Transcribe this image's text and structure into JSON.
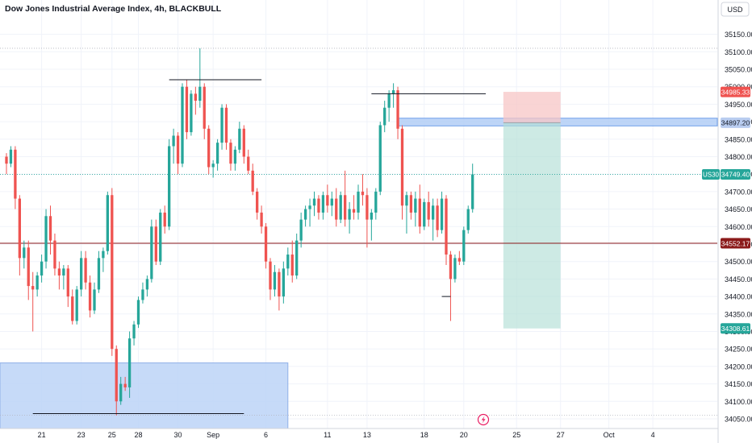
{
  "header": {
    "title": "Dow Jones Industrial Average Index, 4h, BLACKBULL",
    "currency": "USD"
  },
  "colors": {
    "up": "#26a69a",
    "down": "#ef5350",
    "current_price": "#26a69a",
    "hline": "#8b1a1a",
    "stop_zone": "#f7c5c5",
    "target_zone": "#b2dfd6",
    "demand_zone": "#bcd3f7",
    "supply_zone": "#aecbf5",
    "blue_label": "#b9cdf0",
    "grid": "#f0f3fa",
    "text": "#131722"
  },
  "chart_data": {
    "type": "candlestick",
    "title": "Dow Jones Industrial Average Index, 4h, BLACKBULL",
    "ylim": [
      34015,
      35200
    ],
    "y_ticks": [
      34050,
      34100,
      34150,
      34200,
      34250,
      34300,
      34350,
      34400,
      34450,
      34500,
      34550,
      34600,
      34650,
      34700,
      34750,
      34800,
      34850,
      34900,
      34950,
      35000,
      35050,
      35100,
      35150
    ],
    "x_ticks": [
      {
        "label": "21",
        "bar": 8
      },
      {
        "label": "23",
        "bar": 17
      },
      {
        "label": "25",
        "bar": 24
      },
      {
        "label": "28",
        "bar": 30
      },
      {
        "label": "30",
        "bar": 39
      },
      {
        "label": "Sep",
        "bar": 47
      },
      {
        "label": "6",
        "bar": 59
      },
      {
        "label": "11",
        "bar": 73
      },
      {
        "label": "13",
        "bar": 82
      },
      {
        "label": "18",
        "bar": 95
      },
      {
        "label": "20",
        "bar": 104
      },
      {
        "label": "25",
        "bar": 116
      },
      {
        "label": "27",
        "bar": 126
      },
      {
        "label": "Oct",
        "bar": 137
      },
      {
        "label": "4",
        "bar": 147
      }
    ],
    "candles": [
      [
        34800,
        34810,
        34750,
        34780
      ],
      [
        34780,
        34830,
        34770,
        34820
      ],
      [
        34820,
        34830,
        34650,
        34680
      ],
      [
        34680,
        34690,
        34460,
        34510
      ],
      [
        34510,
        34560,
        34480,
        34540
      ],
      [
        34540,
        34560,
        34390,
        34430
      ],
      [
        34430,
        34470,
        34300,
        34420
      ],
      [
        34420,
        34470,
        34400,
        34460
      ],
      [
        34460,
        34520,
        34440,
        34500
      ],
      [
        34500,
        34650,
        34480,
        34630
      ],
      [
        34630,
        34660,
        34520,
        34560
      ],
      [
        34560,
        34580,
        34460,
        34480
      ],
      [
        34480,
        34500,
        34420,
        34460
      ],
      [
        34460,
        34490,
        34420,
        34480
      ],
      [
        34480,
        34490,
        34370,
        34400
      ],
      [
        34400,
        34420,
        34320,
        34330
      ],
      [
        34330,
        34430,
        34320,
        34420
      ],
      [
        34420,
        34530,
        34400,
        34510
      ],
      [
        34510,
        34530,
        34420,
        34440
      ],
      [
        34440,
        34460,
        34340,
        34360
      ],
      [
        34360,
        34440,
        34350,
        34420
      ],
      [
        34420,
        34530,
        34410,
        34510
      ],
      [
        34510,
        34540,
        34470,
        34530
      ],
      [
        34530,
        34700,
        34520,
        34690
      ],
      [
        34690,
        34710,
        34230,
        34250
      ],
      [
        34250,
        34260,
        34060,
        34100
      ],
      [
        34100,
        34170,
        34090,
        34150
      ],
      [
        34150,
        34170,
        34130,
        34140
      ],
      [
        34140,
        34300,
        34110,
        34280
      ],
      [
        34280,
        34330,
        34260,
        34320
      ],
      [
        34320,
        34400,
        34310,
        34390
      ],
      [
        34390,
        34440,
        34380,
        34420
      ],
      [
        34420,
        34460,
        34400,
        34450
      ],
      [
        34450,
        34620,
        34440,
        34600
      ],
      [
        34600,
        34620,
        34490,
        34500
      ],
      [
        34500,
        34650,
        34490,
        34640
      ],
      [
        34640,
        34660,
        34580,
        34600
      ],
      [
        34600,
        34850,
        34590,
        34830
      ],
      [
        34830,
        34880,
        34780,
        34860
      ],
      [
        34860,
        34870,
        34750,
        34780
      ],
      [
        34780,
        35010,
        34770,
        35000
      ],
      [
        35000,
        35020,
        34850,
        34870
      ],
      [
        34870,
        34990,
        34860,
        34980
      ],
      [
        34980,
        35000,
        34920,
        34960
      ],
      [
        34960,
        35110,
        34940,
        35000
      ],
      [
        35000,
        35010,
        34850,
        34880
      ],
      [
        34880,
        34890,
        34750,
        34770
      ],
      [
        34770,
        34790,
        34740,
        34780
      ],
      [
        34780,
        34850,
        34760,
        34840
      ],
      [
        34840,
        34950,
        34820,
        34940
      ],
      [
        34940,
        34950,
        34820,
        34840
      ],
      [
        34840,
        34850,
        34760,
        34780
      ],
      [
        34780,
        34830,
        34760,
        34820
      ],
      [
        34820,
        34900,
        34810,
        34880
      ],
      [
        34880,
        34890,
        34780,
        34800
      ],
      [
        34800,
        34820,
        34750,
        34760
      ],
      [
        34760,
        34780,
        34690,
        34700
      ],
      [
        34700,
        34710,
        34620,
        34640
      ],
      [
        34640,
        34660,
        34580,
        34600
      ],
      [
        34600,
        34610,
        34480,
        34500
      ],
      [
        34500,
        34510,
        34390,
        34420
      ],
      [
        34420,
        34490,
        34400,
        34470
      ],
      [
        34470,
        34480,
        34360,
        34400
      ],
      [
        34400,
        34500,
        34380,
        34480
      ],
      [
        34480,
        34540,
        34460,
        34520
      ],
      [
        34520,
        34560,
        34440,
        34460
      ],
      [
        34460,
        34580,
        34450,
        34560
      ],
      [
        34560,
        34640,
        34540,
        34620
      ],
      [
        34620,
        34660,
        34600,
        34650
      ],
      [
        34650,
        34680,
        34600,
        34660
      ],
      [
        34660,
        34700,
        34630,
        34680
      ],
      [
        34680,
        34690,
        34620,
        34640
      ],
      [
        34640,
        34700,
        34620,
        34690
      ],
      [
        34690,
        34720,
        34640,
        34660
      ],
      [
        34660,
        34700,
        34630,
        34680
      ],
      [
        34680,
        34710,
        34600,
        34620
      ],
      [
        34620,
        34700,
        34610,
        34690
      ],
      [
        34690,
        34760,
        34600,
        34620
      ],
      [
        34620,
        34670,
        34580,
        34650
      ],
      [
        34650,
        34690,
        34620,
        34640
      ],
      [
        34640,
        34720,
        34620,
        34700
      ],
      [
        34700,
        34750,
        34660,
        34690
      ],
      [
        34690,
        34710,
        34540,
        34620
      ],
      [
        34620,
        34650,
        34560,
        34640
      ],
      [
        34640,
        34710,
        34620,
        34700
      ],
      [
        34700,
        34900,
        34690,
        34890
      ],
      [
        34890,
        34960,
        34870,
        34940
      ],
      [
        34940,
        34990,
        34900,
        34980
      ],
      [
        34980,
        35010,
        34940,
        34990
      ],
      [
        34990,
        35000,
        34850,
        34880
      ],
      [
        34880,
        34890,
        34620,
        34660
      ],
      [
        34660,
        34700,
        34580,
        34690
      ],
      [
        34690,
        34700,
        34620,
        34640
      ],
      [
        34640,
        34700,
        34600,
        34680
      ],
      [
        34680,
        34720,
        34580,
        34600
      ],
      [
        34600,
        34680,
        34590,
        34670
      ],
      [
        34670,
        34700,
        34600,
        34620
      ],
      [
        34620,
        34680,
        34560,
        34660
      ],
      [
        34660,
        34680,
        34570,
        34590
      ],
      [
        34590,
        34700,
        34580,
        34680
      ],
      [
        34680,
        34690,
        34490,
        34520
      ],
      [
        34520,
        34530,
        34330,
        34450
      ],
      [
        34450,
        34520,
        34440,
        34510
      ],
      [
        34510,
        34530,
        34490,
        34500
      ],
      [
        34500,
        34600,
        34490,
        34590
      ],
      [
        34590,
        34660,
        34580,
        34650
      ],
      [
        34650,
        34780,
        34640,
        34749.4
      ]
    ],
    "price_labels": [
      {
        "text": "34985.33",
        "value": 34985.33,
        "style": "stop"
      },
      {
        "text": "34897.20",
        "value": 34897.2,
        "style": "blue"
      },
      {
        "text": "34749.40",
        "value": 34749.4,
        "style": "current",
        "tag": "US30"
      },
      {
        "text": "34552.17",
        "value": 34552.17,
        "style": "hline"
      },
      {
        "text": "34308.61",
        "value": 34308.61,
        "style": "target"
      }
    ],
    "horizontal_line": 34552.17,
    "current_price": 34749.4,
    "drawings": {
      "swing_lines": [
        {
          "from_bar": 37,
          "to_bar": 58,
          "value": 35020
        },
        {
          "from_bar": 83,
          "to_bar": 109,
          "value": 34980
        },
        {
          "from_bar": 6,
          "to_bar": 54,
          "value": 34065
        },
        {
          "from_bar": 99,
          "to_bar": 101,
          "value": 34400
        }
      ],
      "demand_zone": {
        "from_bar": -8,
        "to_bar": 64,
        "top": 34210,
        "bottom": 34015
      },
      "supply_zone": {
        "from_bar": 89,
        "to_bar": 165,
        "top": 34910,
        "bottom": 34897.2
      },
      "position": {
        "from_bar": 113,
        "to_bar": 126,
        "entry": 34897.2,
        "stop": 34985.33,
        "target": 34308.61
      }
    }
  }
}
